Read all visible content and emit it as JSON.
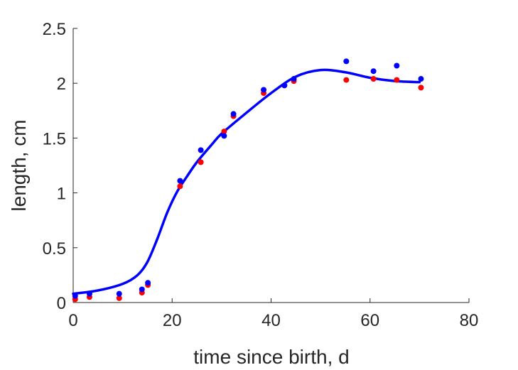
{
  "chart_data": {
    "type": "scatter",
    "title": "",
    "xlabel": "time since birth, d",
    "ylabel": "length, cm",
    "xlim": [
      0,
      80
    ],
    "ylim": [
      0,
      2.5
    ],
    "xticks": [
      0,
      20,
      40,
      60,
      80
    ],
    "yticks": [
      0,
      0.5,
      1,
      1.5,
      2,
      2.5
    ],
    "xtick_labels": [
      "0",
      "20",
      "40",
      "60",
      "80"
    ],
    "ytick_labels": [
      "0",
      "0.5",
      "1",
      "1.5",
      "2",
      "2.5"
    ],
    "grid": false,
    "legend": "none",
    "series": [
      {
        "kind": "scatter",
        "color": "#ff0000",
        "x": [
          0.4,
          3.3,
          9.3,
          13.9,
          15.1,
          21.6,
          25.8,
          30.5,
          32.4,
          38.5,
          42.7,
          44.6,
          55.2,
          60.7,
          65.4,
          70.3
        ],
        "y": [
          0.03,
          0.05,
          0.04,
          0.09,
          0.16,
          1.06,
          1.28,
          1.56,
          1.7,
          1.91,
          1.98,
          2.02,
          2.03,
          2.04,
          2.03,
          1.96
        ]
      },
      {
        "kind": "scatter",
        "color": "#0000ff",
        "x": [
          0.4,
          3.3,
          9.3,
          13.9,
          15.1,
          21.6,
          25.8,
          30.5,
          32.4,
          38.5,
          42.7,
          44.6,
          55.2,
          60.7,
          65.4,
          70.3
        ],
        "y": [
          0.06,
          0.08,
          0.08,
          0.12,
          0.18,
          1.11,
          1.39,
          1.52,
          1.72,
          1.94,
          1.98,
          2.04,
          2.2,
          2.11,
          2.16,
          2.04
        ]
      },
      {
        "kind": "line",
        "color": "#0000ff",
        "x": [
          0,
          5,
          10,
          13,
          15,
          17,
          19,
          21,
          23,
          25,
          28,
          30,
          35,
          40,
          45,
          50,
          55,
          60,
          65,
          70
        ],
        "y": [
          0.08,
          0.11,
          0.17,
          0.25,
          0.37,
          0.58,
          0.82,
          1.01,
          1.15,
          1.28,
          1.44,
          1.54,
          1.73,
          1.91,
          2.06,
          2.12,
          2.1,
          2.05,
          2.02,
          2.01
        ]
      }
    ]
  }
}
